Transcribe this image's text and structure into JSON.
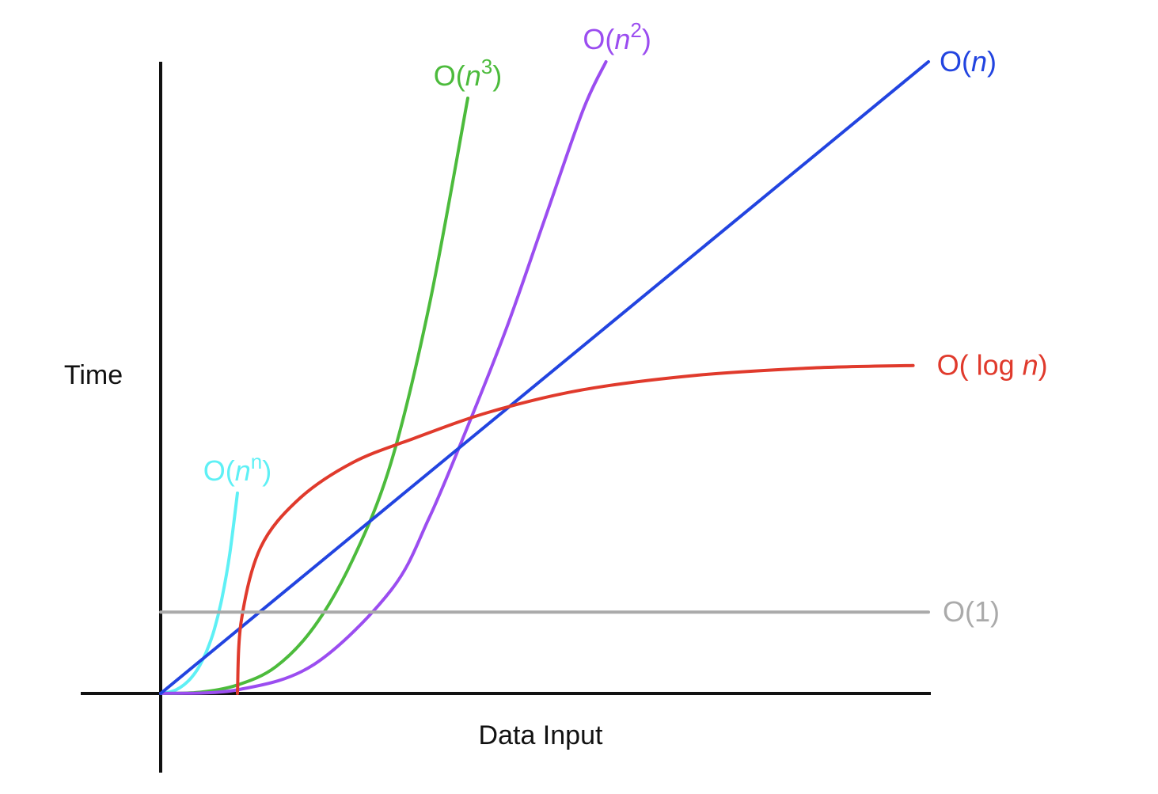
{
  "chart_data": {
    "type": "line",
    "title": "",
    "xlabel": "Data Input",
    "ylabel": "Time",
    "grid": false,
    "series": [
      {
        "name": "O(n^n)",
        "label_parts": [
          {
            "t": "O("
          },
          {
            "t": "n",
            "i": true
          },
          {
            "t": "n",
            "sup": true
          },
          {
            "t": ")"
          }
        ],
        "color": "#5ef0f5",
        "x": [
          0,
          0.1,
          0.2,
          0.3,
          0.4,
          0.5,
          0.6,
          0.7,
          0.8,
          0.9,
          1.0
        ],
        "y": [
          0,
          0.01,
          0.03,
          0.07,
          0.13,
          0.22,
          0.35,
          0.53,
          0.79,
          1.15,
          1.65
        ]
      },
      {
        "name": "O(n^3)",
        "label_parts": [
          {
            "t": "O("
          },
          {
            "t": "n",
            "i": true
          },
          {
            "t": "3",
            "sup": true
          },
          {
            "t": ")"
          }
        ],
        "color": "#4cbb3c",
        "x": [
          0,
          0.5,
          1.0,
          1.5,
          2.0,
          2.5,
          3.0,
          3.5,
          4.0
        ],
        "y": [
          0,
          0.01,
          0.07,
          0.22,
          0.55,
          1.1,
          1.9,
          3.2,
          4.9
        ]
      },
      {
        "name": "O(n^2)",
        "label_parts": [
          {
            "t": "O("
          },
          {
            "t": "n",
            "i": true
          },
          {
            "t": "2",
            "sup": true
          },
          {
            "t": ")"
          }
        ],
        "color": "#9b4df0",
        "x": [
          0,
          1.0,
          2.0,
          3.0,
          3.5,
          4.0,
          4.5,
          5.0,
          5.5,
          5.8
        ],
        "y": [
          0,
          0.03,
          0.24,
          0.85,
          1.45,
          2.2,
          3.0,
          3.9,
          4.8,
          5.2
        ]
      },
      {
        "name": "O(n)",
        "label_parts": [
          {
            "t": "O("
          },
          {
            "t": "n",
            "i": true
          },
          {
            "t": ")"
          }
        ],
        "color": "#2244e0",
        "x": [
          0,
          10.0
        ],
        "y": [
          0,
          5.2
        ]
      },
      {
        "name": "O( log n)",
        "label_parts": [
          {
            "t": "O( log "
          },
          {
            "t": "n",
            "i": true
          },
          {
            "t": ")"
          }
        ],
        "color": "#e03a2c",
        "x": [
          1.0,
          1.05,
          1.3,
          1.8,
          2.5,
          3.3,
          4.3,
          5.5,
          7.0,
          8.5,
          9.8
        ],
        "y": [
          0,
          0.6,
          1.2,
          1.6,
          1.9,
          2.1,
          2.32,
          2.5,
          2.62,
          2.68,
          2.7
        ]
      },
      {
        "name": "O(1)",
        "label_parts": [
          {
            "t": "O(1)"
          }
        ],
        "color": "#aaaaaa",
        "x": [
          0,
          10.0
        ],
        "y": [
          0.67,
          0.67
        ]
      }
    ],
    "xlim": [
      0,
      10
    ],
    "ylim": [
      0,
      5.2
    ]
  }
}
